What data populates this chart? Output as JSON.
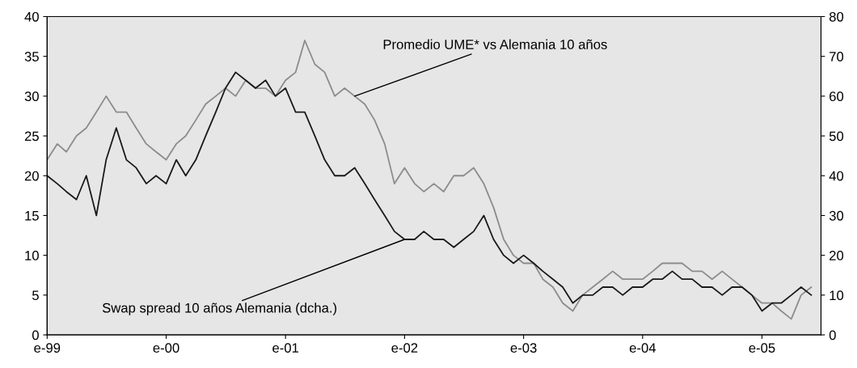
{
  "chart_data": {
    "type": "line",
    "x": [
      "1999-01",
      "1999-02",
      "1999-03",
      "1999-04",
      "1999-05",
      "1999-06",
      "1999-07",
      "1999-08",
      "1999-09",
      "1999-10",
      "1999-11",
      "1999-12",
      "2000-01",
      "2000-02",
      "2000-03",
      "2000-04",
      "2000-05",
      "2000-06",
      "2000-07",
      "2000-08",
      "2000-09",
      "2000-10",
      "2000-11",
      "2000-12",
      "2001-01",
      "2001-02",
      "2001-03",
      "2001-04",
      "2001-05",
      "2001-06",
      "2001-07",
      "2001-08",
      "2001-09",
      "2001-10",
      "2001-11",
      "2001-12",
      "2002-01",
      "2002-02",
      "2002-03",
      "2002-04",
      "2002-05",
      "2002-06",
      "2002-07",
      "2002-08",
      "2002-09",
      "2002-10",
      "2002-11",
      "2002-12",
      "2003-01",
      "2003-02",
      "2003-03",
      "2003-04",
      "2003-05",
      "2003-06",
      "2003-07",
      "2003-08",
      "2003-09",
      "2003-10",
      "2003-11",
      "2003-12",
      "2004-01",
      "2004-02",
      "2004-03",
      "2004-04",
      "2004-05",
      "2004-06",
      "2004-07",
      "2004-08",
      "2004-09",
      "2004-10",
      "2004-11",
      "2004-12",
      "2005-01",
      "2005-02",
      "2005-03",
      "2005-04",
      "2005-05",
      "2005-06"
    ],
    "series": [
      {
        "color": "#8c8c8c",
        "values": [
          22,
          24,
          23,
          25,
          26,
          28,
          30,
          28,
          28,
          26,
          24,
          23,
          22,
          24,
          25,
          27,
          29,
          30,
          31,
          30,
          32,
          31,
          31,
          30,
          32,
          33,
          37,
          34,
          33,
          30,
          31,
          30,
          29,
          27,
          24,
          19,
          21,
          19,
          18,
          19,
          18,
          20,
          20,
          21,
          19,
          16,
          12,
          10,
          9,
          9,
          7,
          6,
          4,
          3,
          5,
          6,
          7,
          8,
          7,
          7,
          7,
          8,
          9,
          9,
          9,
          8,
          8,
          7,
          8,
          7,
          6,
          5,
          4,
          4,
          3,
          2,
          5,
          6
        ]
      },
      {
        "color": "#1a1a1a",
        "axis": "y2",
        "values": [
          40,
          38,
          36,
          34,
          40,
          30,
          44,
          52,
          44,
          42,
          38,
          40,
          38,
          44,
          40,
          44,
          50,
          56,
          62,
          66,
          64,
          62,
          64,
          60,
          62,
          56,
          56,
          50,
          44,
          40,
          40,
          42,
          38,
          34,
          30,
          26,
          24,
          24,
          26,
          24,
          24,
          22,
          24,
          26,
          30,
          24,
          20,
          18,
          20,
          18,
          16,
          14,
          12,
          8,
          10,
          10,
          12,
          12,
          10,
          12,
          12,
          14,
          14,
          16,
          14,
          14,
          12,
          12,
          10,
          12,
          12,
          10,
          6,
          8,
          8,
          10,
          12,
          10
        ]
      }
    ],
    "xlim": [
      "1999-01",
      "2005-07"
    ],
    "xticks": [
      {
        "value": "1999-01",
        "label": "e-99"
      },
      {
        "value": "2000-01",
        "label": "e-00"
      },
      {
        "value": "2001-01",
        "label": "e-01"
      },
      {
        "value": "2002-01",
        "label": "e-02"
      },
      {
        "value": "2003-01",
        "label": "e-03"
      },
      {
        "value": "2004-01",
        "label": "e-04"
      },
      {
        "value": "2005-01",
        "label": "e-05"
      }
    ],
    "ylim": [
      0,
      40
    ],
    "yticks": [
      0,
      5,
      10,
      15,
      20,
      25,
      30,
      35,
      40
    ],
    "y2lim": [
      0,
      80
    ],
    "y2ticks": [
      0,
      10,
      20,
      30,
      40,
      50,
      60,
      70,
      80
    ],
    "annotations": [
      {
        "text": "Promedio UME* vs Alemania 10 años",
        "x": "2001-08",
        "y": 30
      },
      {
        "text": "Swap spread 10 años Alemania (dcha.)",
        "x": "2002-01",
        "y": 12
      }
    ],
    "grid": false,
    "legend": false,
    "line_style": "solid",
    "marker": "none"
  }
}
